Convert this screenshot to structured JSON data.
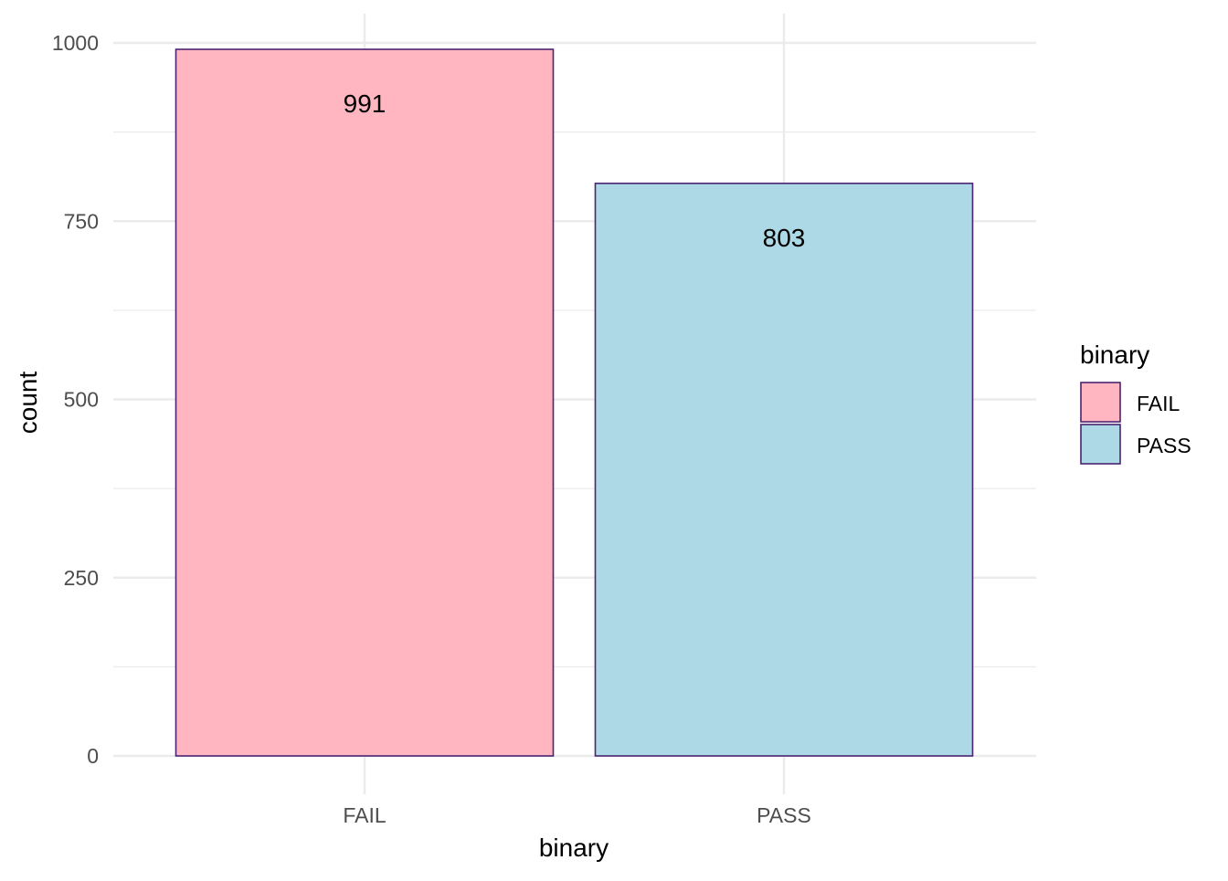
{
  "chart_data": {
    "type": "bar",
    "categories": [
      "FAIL",
      "PASS"
    ],
    "values": [
      991,
      803
    ],
    "data_labels": [
      "991",
      "803"
    ],
    "colors": {
      "FAIL": "#FFB6C1",
      "PASS": "#ADD8E6",
      "bar_outline": "#4B2473",
      "grid": "#EBEBEB",
      "axis_text": "#4D4D4D",
      "title_text": "#000000"
    },
    "xlabel": "binary",
    "ylabel": "count",
    "ylim": [
      0,
      1000
    ],
    "y_ticks": [
      0,
      250,
      500,
      750,
      1000
    ],
    "y_minor_ticks": [
      125,
      375,
      625,
      875
    ],
    "grid": true,
    "legend": {
      "title": "binary",
      "placement": "right",
      "entries": [
        "FAIL",
        "PASS"
      ]
    }
  }
}
